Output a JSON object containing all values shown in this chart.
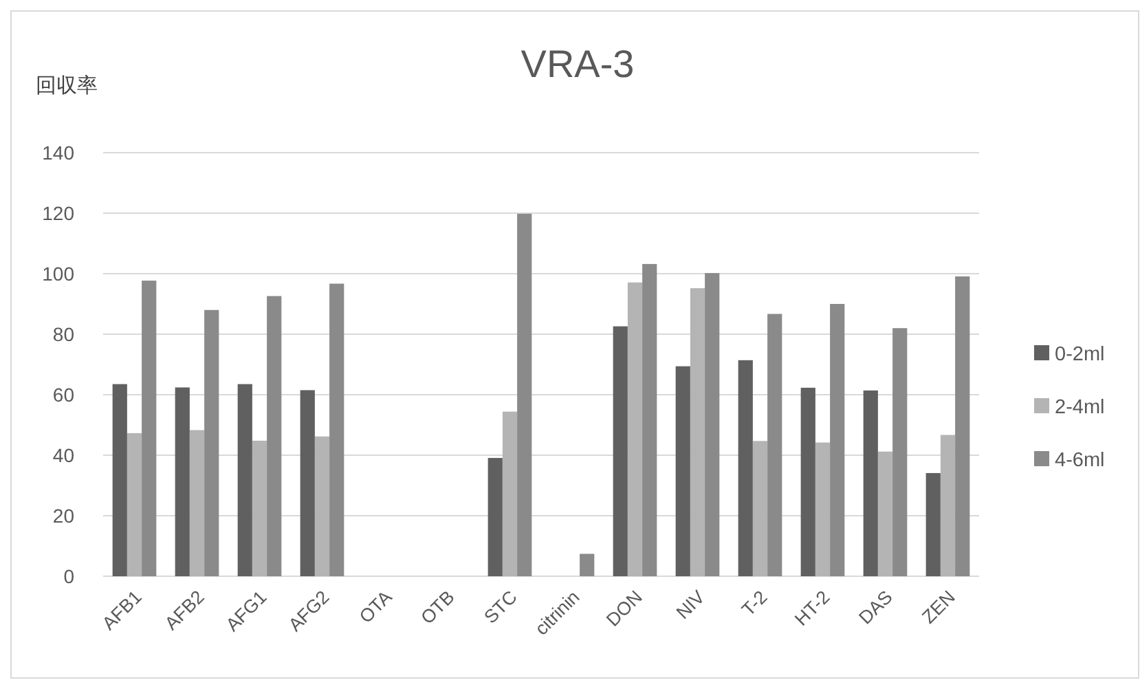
{
  "chart_data": {
    "type": "bar",
    "title": "VRA-3",
    "ylabel": "回収率",
    "categories": [
      "AFB1",
      "AFB2",
      "AFG1",
      "AFG2",
      "OTA",
      "OTB",
      "STC",
      "citrinin",
      "DON",
      "NIV",
      "T-2",
      "HT-2",
      "DAS",
      "ZEN"
    ],
    "series": [
      {
        "name": "0-2ml",
        "color": "#606060",
        "values": [
          63.5,
          62.4,
          63.5,
          61.5,
          null,
          null,
          39.1,
          null,
          82.6,
          69.4,
          71.4,
          62.3,
          61.4,
          34.1
        ]
      },
      {
        "name": "2-4ml",
        "color": "#b4b4b4",
        "values": [
          47.3,
          48.3,
          44.8,
          46.2,
          null,
          null,
          54.4,
          null,
          97.1,
          95.2,
          44.7,
          44.2,
          41.2,
          46.7
        ]
      },
      {
        "name": "4-6ml",
        "color": "#8a8a8a",
        "values": [
          97.7,
          88.0,
          92.6,
          96.7,
          null,
          null,
          119.8,
          7.4,
          103.2,
          100.2,
          86.7,
          90.0,
          82.0,
          99.1
        ]
      }
    ],
    "ylim": [
      0,
      140
    ],
    "yticks": [
      0,
      20,
      40,
      60,
      80,
      100,
      120,
      140
    ],
    "grid": "y",
    "legend": "right"
  }
}
